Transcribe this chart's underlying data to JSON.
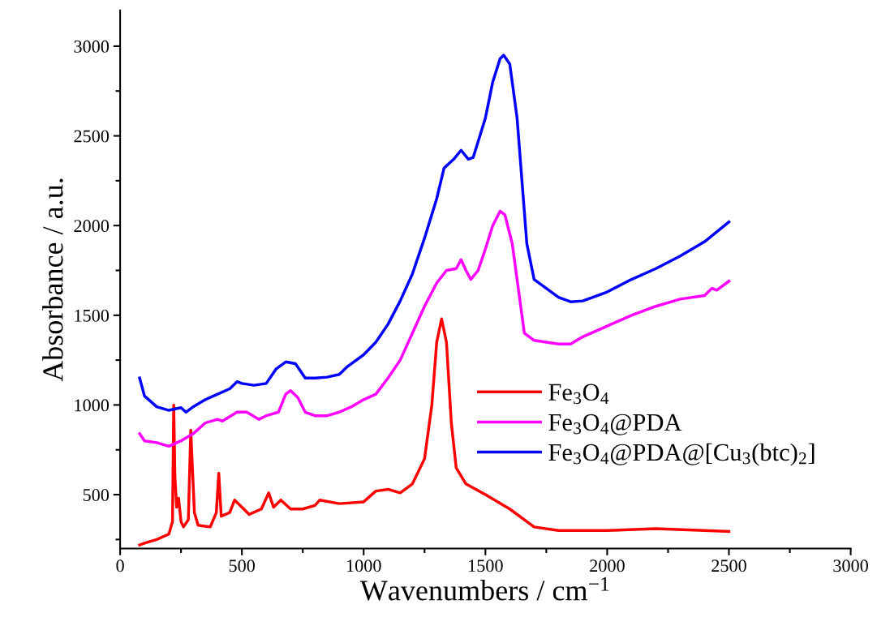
{
  "chart_data": {
    "type": "line",
    "xlabel": "Wavenumbers / cm$^{−1}$",
    "ylabel": "Absorbance / a.u.",
    "xlim": [
      0,
      3000
    ],
    "xticks": [
      0,
      500,
      1000,
      1500,
      2000,
      2500,
      3000
    ],
    "ylim": [
      200,
      3200
    ],
    "yticks": [
      500,
      1000,
      1500,
      2000,
      2500,
      3000
    ],
    "grid": false,
    "legend": "right",
    "marker": "none",
    "line_style": "solid",
    "series": [
      {
        "name": "Fe$_{3}$O$_{4}$",
        "color": "#ff0000",
        "x": [
          80,
          100,
          150,
          200,
          215,
          220,
          225,
          232,
          240,
          250,
          260,
          280,
          290,
          295,
          305,
          320,
          370,
          395,
          405,
          415,
          450,
          470,
          500,
          530,
          580,
          610,
          630,
          660,
          700,
          750,
          800,
          820,
          900,
          1000,
          1050,
          1100,
          1150,
          1200,
          1250,
          1280,
          1300,
          1320,
          1340,
          1360,
          1380,
          1420,
          1500,
          1600,
          1700,
          1800,
          2000,
          2200,
          2400,
          2500
        ],
        "values": [
          220,
          230,
          250,
          280,
          350,
          1000,
          600,
          430,
          480,
          350,
          320,
          360,
          860,
          700,
          400,
          330,
          320,
          400,
          620,
          380,
          400,
          470,
          430,
          390,
          420,
          510,
          430,
          470,
          420,
          420,
          440,
          470,
          450,
          460,
          520,
          530,
          510,
          560,
          700,
          1000,
          1350,
          1480,
          1350,
          900,
          650,
          560,
          500,
          420,
          320,
          300,
          300,
          310,
          300,
          295
        ]
      },
      {
        "name": "Fe$_{3}$O$_{4}$@PDA",
        "color": "#ff00ff",
        "x": [
          80,
          100,
          150,
          200,
          250,
          300,
          350,
          400,
          420,
          480,
          520,
          570,
          600,
          650,
          680,
          700,
          730,
          760,
          800,
          850,
          900,
          950,
          1000,
          1050,
          1100,
          1150,
          1200,
          1250,
          1300,
          1340,
          1380,
          1400,
          1420,
          1440,
          1470,
          1500,
          1530,
          1560,
          1580,
          1610,
          1640,
          1660,
          1700,
          1750,
          1800,
          1850,
          1900,
          2000,
          2100,
          2200,
          2300,
          2400,
          2430,
          2450,
          2500
        ],
        "values": [
          840,
          800,
          790,
          770,
          800,
          840,
          900,
          920,
          910,
          960,
          960,
          920,
          940,
          960,
          1060,
          1080,
          1040,
          960,
          940,
          940,
          960,
          990,
          1030,
          1060,
          1150,
          1250,
          1400,
          1550,
          1680,
          1750,
          1760,
          1810,
          1750,
          1700,
          1750,
          1870,
          2000,
          2080,
          2060,
          1900,
          1600,
          1400,
          1360,
          1350,
          1340,
          1340,
          1380,
          1440,
          1500,
          1550,
          1590,
          1610,
          1650,
          1640,
          1690
        ]
      },
      {
        "name": "Fe$_{3}$O$_{4}$@PDA@[Cu$_{3}$(btc)$_{2}$]",
        "color": "#0000ff",
        "x": [
          80,
          100,
          150,
          200,
          250,
          270,
          300,
          350,
          400,
          450,
          480,
          500,
          550,
          600,
          640,
          680,
          720,
          760,
          800,
          850,
          900,
          930,
          1000,
          1050,
          1100,
          1150,
          1200,
          1250,
          1300,
          1330,
          1370,
          1400,
          1430,
          1450,
          1500,
          1530,
          1560,
          1575,
          1600,
          1630,
          1650,
          1670,
          1700,
          1750,
          1800,
          1850,
          1900,
          2000,
          2100,
          2200,
          2300,
          2400,
          2500
        ],
        "values": [
          1150,
          1050,
          990,
          970,
          985,
          960,
          990,
          1030,
          1060,
          1090,
          1130,
          1120,
          1110,
          1120,
          1200,
          1240,
          1230,
          1150,
          1150,
          1155,
          1170,
          1210,
          1280,
          1350,
          1450,
          1580,
          1730,
          1930,
          2150,
          2320,
          2370,
          2420,
          2370,
          2380,
          2600,
          2800,
          2930,
          2950,
          2900,
          2600,
          2250,
          1900,
          1700,
          1650,
          1600,
          1575,
          1580,
          1630,
          1700,
          1760,
          1830,
          1910,
          2020
        ]
      }
    ]
  }
}
